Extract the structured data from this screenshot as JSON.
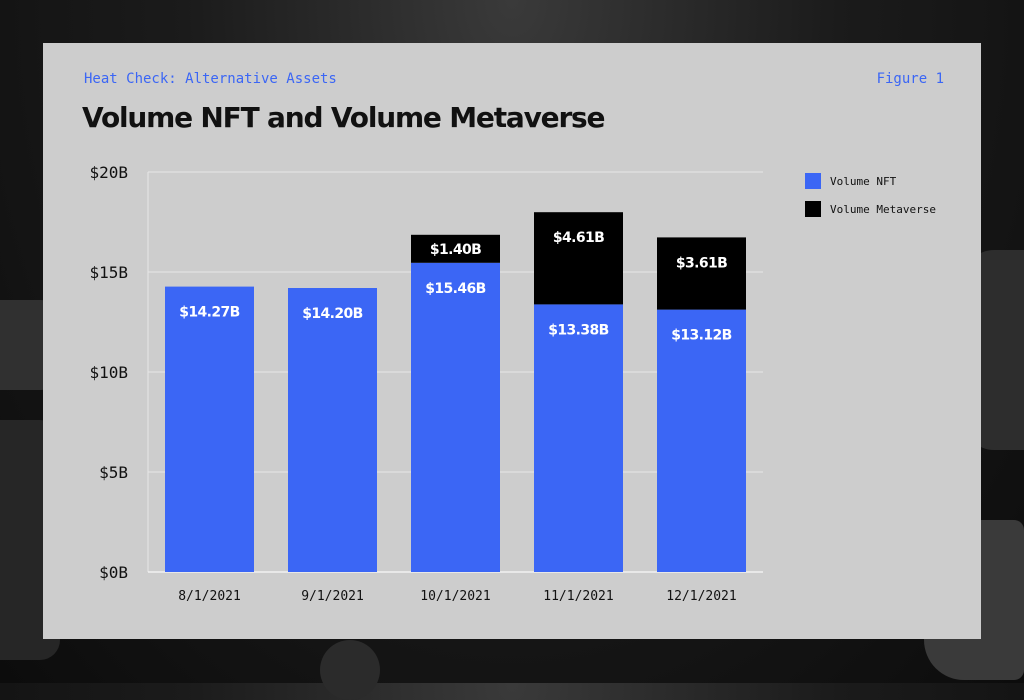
{
  "header": {
    "kicker": "Heat Check: Alternative Assets",
    "figure": "Figure 1"
  },
  "chart_data": {
    "type": "bar",
    "stacked": true,
    "title": "Volume NFT and Volume Metaverse",
    "xlabel": "",
    "ylabel": "",
    "categories": [
      "8/1/2021",
      "9/1/2021",
      "10/1/2021",
      "11/1/2021",
      "12/1/2021"
    ],
    "series": [
      {
        "name": "Volume NFT",
        "color": "#3b66f5",
        "values": [
          14.27,
          14.2,
          15.46,
          13.38,
          13.12
        ],
        "labels": [
          "$14.27B",
          "$14.20B",
          "$15.46B",
          "$13.38B",
          "$13.12B"
        ]
      },
      {
        "name": "Volume Metaverse",
        "color": "#000000",
        "values": [
          null,
          null,
          1.4,
          4.61,
          3.61
        ],
        "labels": [
          "",
          "",
          "$1.40B",
          "$4.61B",
          "$3.61B"
        ]
      }
    ],
    "ylim": [
      0,
      20
    ],
    "yticks": [
      0,
      5,
      10,
      15,
      20
    ],
    "ytick_labels": [
      "$0B",
      "$5B",
      "$10B",
      "$15B",
      "$20B"
    ],
    "grid": true,
    "legend_position": "top-right"
  }
}
